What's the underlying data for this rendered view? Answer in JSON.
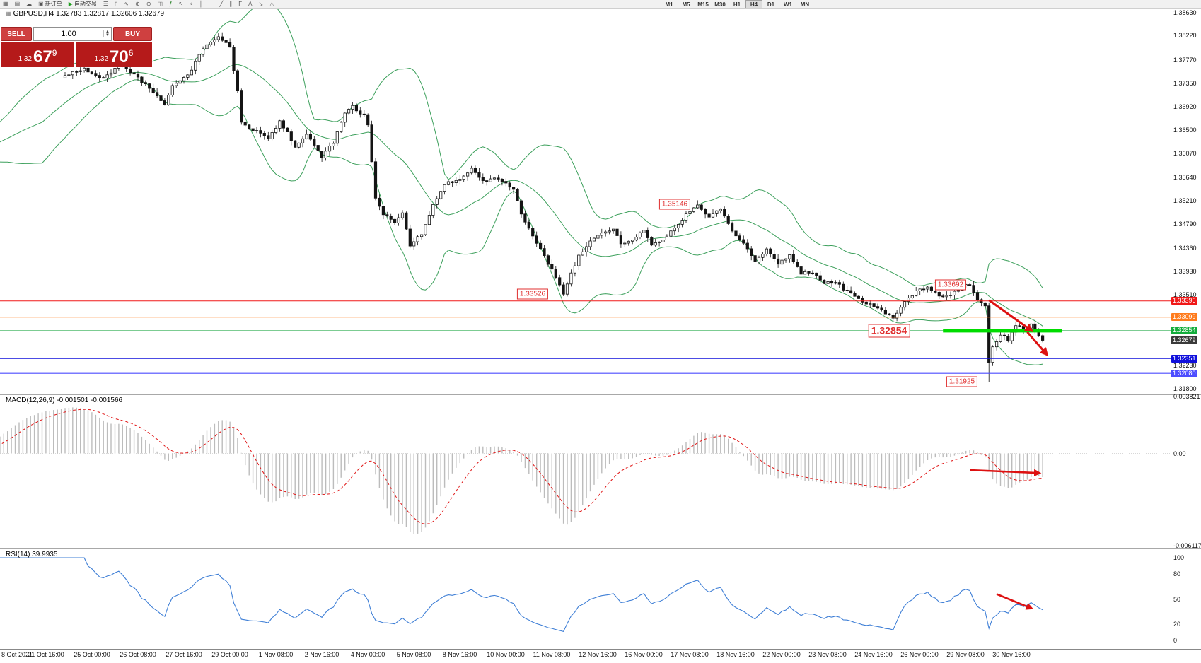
{
  "toolbar": {
    "items": [
      {
        "name": "charts-grid-icon",
        "glyph": "▦"
      },
      {
        "name": "profiles-icon",
        "glyph": "▤"
      },
      {
        "name": "cloud-sync-icon",
        "glyph": "☁"
      },
      {
        "name": "new-order-button",
        "glyph": "▣",
        "label": "新订单"
      },
      {
        "name": "autotrading-button",
        "glyph": "▶",
        "label": "自动交易",
        "color": "#1e9e1e"
      },
      {
        "name": "bar-chart-icon",
        "glyph": "☰"
      },
      {
        "name": "candlestick-chart-icon",
        "glyph": "▯"
      },
      {
        "name": "line-chart-icon",
        "glyph": "∿"
      },
      {
        "name": "zoom-in-icon",
        "glyph": "⊕"
      },
      {
        "name": "zoom-out-icon",
        "glyph": "⊖"
      },
      {
        "name": "tile-windows-icon",
        "glyph": "◫"
      },
      {
        "name": "indicators-icon",
        "glyph": "ƒ",
        "color": "#1e7e1e"
      },
      {
        "name": "cursor-icon",
        "glyph": "↖"
      },
      {
        "name": "crosshair-icon",
        "glyph": "⌖"
      },
      {
        "name": "vertical-line-icon",
        "glyph": "│"
      },
      {
        "name": "horizontal-line-icon",
        "glyph": "─"
      },
      {
        "name": "trendline-icon",
        "glyph": "╱"
      },
      {
        "name": "equidistant-channel-icon",
        "glyph": "∥"
      },
      {
        "name": "fibonacci-icon",
        "glyph": "F"
      },
      {
        "name": "text-label-icon",
        "glyph": "A"
      },
      {
        "name": "arrows-icon",
        "glyph": "↘"
      },
      {
        "name": "shapes-icon",
        "glyph": "△"
      }
    ],
    "timeframes": [
      "M1",
      "M5",
      "M15",
      "M30",
      "H1",
      "H4",
      "D1",
      "W1",
      "MN"
    ],
    "active_timeframe": "H4"
  },
  "trade_panel": {
    "sell_label": "SELL",
    "buy_label": "BUY",
    "volume": "1.00",
    "sell_price": {
      "prefix": "1.32",
      "big": "67",
      "sup": "9"
    },
    "buy_price": {
      "prefix": "1.32",
      "big": "70",
      "sup": "6"
    }
  },
  "chart": {
    "header": {
      "symbol": "GBPUSD,H4",
      "open": "1.32783",
      "high": "1.32817",
      "low": "1.32606",
      "close": "1.32679"
    },
    "price_axis": {
      "plain_labels": [
        "1.38630",
        "1.38220",
        "1.37770",
        "1.37350",
        "1.36920",
        "1.36500",
        "1.36070",
        "1.35640",
        "1.35210",
        "1.34790",
        "1.34360",
        "1.33930",
        "1.33510",
        "1.32230",
        "1.31800"
      ],
      "boxed_labels": [
        {
          "text": "1.33396",
          "bg": "#f01818"
        },
        {
          "text": "1.33099",
          "bg": "#ff7b1c"
        },
        {
          "text": "1.32854",
          "bg": "#13ad3c"
        },
        {
          "text": "1.32679",
          "bg": "#3a3a3a"
        },
        {
          "text": "1.32351",
          "bg": "#1010dc"
        },
        {
          "text": "1.32080",
          "bg": "#4d4dff"
        }
      ]
    },
    "level_lines": [
      {
        "price": 1.33396,
        "color": "#f01818",
        "width": 1
      },
      {
        "price": 1.33099,
        "color": "#ff7b1c",
        "width": 1
      },
      {
        "price": 1.32854,
        "color": "#2fae52",
        "width": 1
      },
      {
        "price": 1.32351,
        "color": "#1010dc",
        "width": 1.2
      },
      {
        "price": 1.3208,
        "color": "#4d4dff",
        "width": 1.2
      }
    ],
    "support_zone": {
      "price": 1.32854,
      "bar_from": 229,
      "bar_to": 260,
      "color": "#00dc00",
      "thickness": 5
    },
    "callouts": [
      {
        "text": "1.35146",
        "bar": 159,
        "price": 1.35146,
        "big": false
      },
      {
        "text": "1.33526",
        "bar": 122,
        "price": 1.33526,
        "big": false
      },
      {
        "text": "1.33692",
        "bar": 231,
        "price": 1.33692,
        "big": false
      },
      {
        "text": "1.32854",
        "bar": 215,
        "price": 1.32854,
        "big": true
      },
      {
        "text": "1.31925",
        "bar": 234,
        "price": 1.31925,
        "big": false
      }
    ],
    "arrows": [
      {
        "panel": "main",
        "from": [
          241,
          1.3341
        ],
        "to": [
          252,
          1.3286
        ]
      },
      {
        "panel": "main",
        "from": [
          251,
          1.3283
        ],
        "to": [
          256,
          1.3243
        ]
      },
      {
        "panel": "macd",
        "from": [
          236,
          -0.0011
        ],
        "to": [
          254,
          -0.0013
        ]
      },
      {
        "panel": "rsi",
        "from": [
          243,
          56
        ],
        "to": [
          252,
          39
        ]
      }
    ]
  },
  "chart_data": {
    "type": "candlestick",
    "symbol": "GBPUSD",
    "timeframe": "H4",
    "title": "GBPUSD,H4",
    "ohlc_header": {
      "open": 1.32783,
      "high": 1.32817,
      "low": 1.32606,
      "close": 1.32679
    },
    "y_range": [
      1.318,
      1.3863
    ],
    "bars_visible": 256,
    "last_close": 1.32679,
    "extreme_low": 1.31925,
    "price_path_waypoints": [
      [
        -25,
        1.36
      ],
      [
        -12,
        1.369
      ],
      [
        -1,
        1.3742
      ],
      [
        0,
        1.3748
      ],
      [
        5,
        1.3762
      ],
      [
        10,
        1.3742
      ],
      [
        14,
        1.3768
      ],
      [
        18,
        1.3752
      ],
      [
        22,
        1.3725
      ],
      [
        26,
        1.3698
      ],
      [
        28,
        1.3732
      ],
      [
        32,
        1.3748
      ],
      [
        36,
        1.38
      ],
      [
        40,
        1.3822
      ],
      [
        43,
        1.3798
      ],
      [
        45,
        1.3722
      ],
      [
        46,
        1.3662
      ],
      [
        50,
        1.3648
      ],
      [
        53,
        1.3632
      ],
      [
        56,
        1.3668
      ],
      [
        60,
        1.362
      ],
      [
        63,
        1.3642
      ],
      [
        67,
        1.36
      ],
      [
        70,
        1.3628
      ],
      [
        73,
        1.3682
      ],
      [
        75,
        1.3692
      ],
      [
        78,
        1.3676
      ],
      [
        79,
        1.3658
      ],
      [
        81,
        1.3525
      ],
      [
        83,
        1.3498
      ],
      [
        86,
        1.3482
      ],
      [
        88,
        1.3502
      ],
      [
        90,
        1.3438
      ],
      [
        93,
        1.3462
      ],
      [
        96,
        1.3512
      ],
      [
        99,
        1.3552
      ],
      [
        103,
        1.356
      ],
      [
        106,
        1.3582
      ],
      [
        109,
        1.3556
      ],
      [
        112,
        1.3562
      ],
      [
        115,
        1.3556
      ],
      [
        117,
        1.3542
      ],
      [
        119,
        1.3498
      ],
      [
        122,
        1.3458
      ],
      [
        125,
        1.3422
      ],
      [
        128,
        1.3382
      ],
      [
        130,
        1.3352
      ],
      [
        132,
        1.3388
      ],
      [
        134,
        1.3422
      ],
      [
        137,
        1.3448
      ],
      [
        140,
        1.3462
      ],
      [
        143,
        1.347
      ],
      [
        145,
        1.3442
      ],
      [
        148,
        1.345
      ],
      [
        151,
        1.3467
      ],
      [
        153,
        1.3442
      ],
      [
        156,
        1.345
      ],
      [
        159,
        1.3472
      ],
      [
        162,
        1.3497
      ],
      [
        165,
        1.3513
      ],
      [
        168,
        1.3492
      ],
      [
        171,
        1.3506
      ],
      [
        174,
        1.3467
      ],
      [
        177,
        1.3442
      ],
      [
        180,
        1.3413
      ],
      [
        183,
        1.3432
      ],
      [
        186,
        1.3406
      ],
      [
        189,
        1.3422
      ],
      [
        192,
        1.339
      ],
      [
        195,
        1.3392
      ],
      [
        198,
        1.3372
      ],
      [
        201,
        1.3374
      ],
      [
        204,
        1.3356
      ],
      [
        207,
        1.3342
      ],
      [
        210,
        1.3333
      ],
      [
        213,
        1.3321
      ],
      [
        216,
        1.3311
      ],
      [
        219,
        1.3336
      ],
      [
        222,
        1.3356
      ],
      [
        225,
        1.3366
      ],
      [
        228,
        1.3346
      ],
      [
        231,
        1.3352
      ],
      [
        234,
        1.3366
      ],
      [
        236,
        1.3369
      ],
      [
        238,
        1.3344
      ],
      [
        240,
        1.333
      ],
      [
        241,
        1.3228
      ],
      [
        242,
        1.3258
      ],
      [
        244,
        1.3278
      ],
      [
        246,
        1.3268
      ],
      [
        248,
        1.3296
      ],
      [
        250,
        1.3286
      ],
      [
        252,
        1.3296
      ],
      [
        254,
        1.3278
      ],
      [
        255,
        1.3268
      ]
    ],
    "indicators": {
      "bollinger": {
        "period": 20,
        "deviation": 2,
        "color": "#3da05c"
      },
      "macd": {
        "label": "MACD(12,26,9)",
        "values_text": "-0.001501 -0.001566",
        "macd_value": -0.001501,
        "signal_value": -0.001566,
        "y_range": [
          -0.006117,
          0.003821
        ],
        "axis_labels": [
          "0.003821",
          "0.00",
          "-0.006117"
        ],
        "histogram_color": "#bcbcbc",
        "signal_color": "#e01616"
      },
      "rsi": {
        "label": "RSI(14)",
        "value_text": "39.9935",
        "value": 39.9935,
        "y_range": [
          0,
          100
        ],
        "axis_labels": [
          "100",
          "80",
          "50",
          "20",
          "0"
        ],
        "line_color": "#3f7fd6"
      }
    }
  },
  "time_axis": {
    "first_label": "8 Oct 2021",
    "labels": [
      "21 Oct 16:00",
      "25 Oct 00:00",
      "26 Oct 08:00",
      "27 Oct 16:00",
      "29 Oct 00:00",
      "1 Nov 08:00",
      "2 Nov 16:00",
      "4 Nov 00:00",
      "5 Nov 08:00",
      "8 Nov 16:00",
      "10 Nov 00:00",
      "11 Nov 08:00",
      "12 Nov 16:00",
      "16 Nov 00:00",
      "17 Nov 08:00",
      "18 Nov 16:00",
      "22 Nov 00:00",
      "23 Nov 08:00",
      "24 Nov 16:00",
      "26 Nov 00:00",
      "29 Nov 08:00",
      "30 Nov 16:00"
    ]
  },
  "colors": {
    "bull_candle": "#ffffff",
    "bear_candle": "#141414",
    "candle_outline": "#141414",
    "arrow": "#dd1111"
  }
}
